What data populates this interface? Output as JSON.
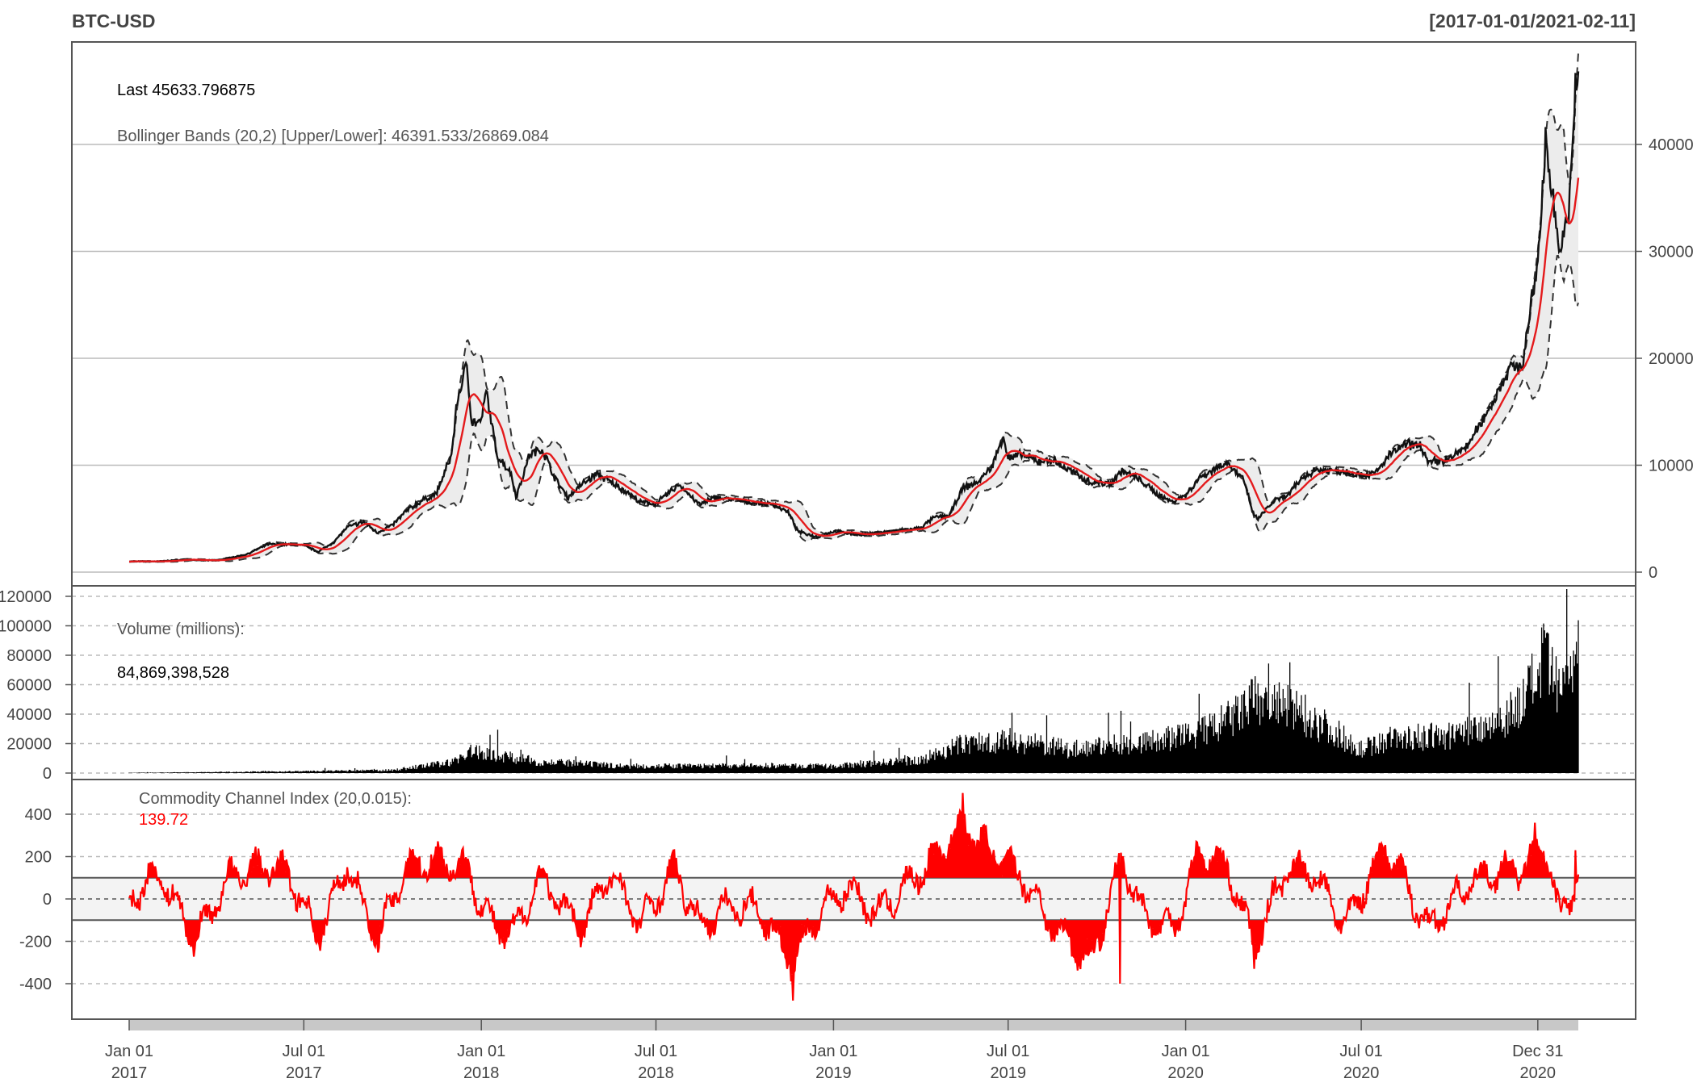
{
  "header": {
    "symbol": "BTC-USD",
    "range": "[2017-01-01/2021-02-11]"
  },
  "colors": {
    "background": "#ffffff",
    "frame": "#555555",
    "grid": "#bbbbbb",
    "price_line": "#111111",
    "sma_line": "#e41a1c",
    "band_line": "#333333",
    "band_fill": "#e8e8e8",
    "volume": "#000000",
    "cci": "#ff0000",
    "cci_band": "#f2f2f2",
    "text": "#444444",
    "cci_value": "#ff0000"
  },
  "chart_data": [
    {
      "type": "line",
      "title": "BTC-USD",
      "subtitle": "[2017-01-01/2021-02-11]",
      "last_label": "Last 45633.796875",
      "bands_label": "Bollinger Bands (20,2) [Upper/Lower]: 46391.533/26869.084",
      "ylim": [
        0,
        49000
      ],
      "yticks": [
        0,
        10000,
        20000,
        30000,
        40000
      ],
      "ytick_labels": [
        "0",
        "10000",
        "20000",
        "30000",
        "40000"
      ],
      "grid": true,
      "series": [
        {
          "x": [
            "2017-01-01",
            "2017-02-01",
            "2017-03-01",
            "2017-03-15",
            "2017-04-01",
            "2017-05-01",
            "2017-05-25",
            "2017-06-12",
            "2017-07-01",
            "2017-07-16",
            "2017-08-01",
            "2017-08-15",
            "2017-09-01",
            "2017-09-15",
            "2017-10-01",
            "2017-10-15",
            "2017-11-01",
            "2017-11-15",
            "2017-12-01",
            "2017-12-07",
            "2017-12-17",
            "2017-12-22",
            "2018-01-01",
            "2018-01-06",
            "2018-01-17",
            "2018-02-01",
            "2018-02-06",
            "2018-02-20",
            "2018-03-05",
            "2018-03-20",
            "2018-04-01",
            "2018-04-15",
            "2018-05-01",
            "2018-05-15",
            "2018-06-01",
            "2018-06-15",
            "2018-07-01",
            "2018-07-25",
            "2018-08-15",
            "2018-09-01",
            "2018-10-01",
            "2018-11-01",
            "2018-11-15",
            "2018-11-25",
            "2018-12-15",
            "2019-01-01",
            "2019-02-01",
            "2019-03-01",
            "2019-04-01",
            "2019-04-15",
            "2019-05-01",
            "2019-05-15",
            "2019-06-01",
            "2019-06-15",
            "2019-06-26",
            "2019-07-01",
            "2019-07-15",
            "2019-08-01",
            "2019-08-15",
            "2019-09-01",
            "2019-09-25",
            "2019-10-15",
            "2019-10-27",
            "2019-11-15",
            "2019-12-01",
            "2019-12-17",
            "2020-01-01",
            "2020-01-15",
            "2020-02-12",
            "2020-03-01",
            "2020-03-12",
            "2020-03-16",
            "2020-04-01",
            "2020-04-15",
            "2020-05-01",
            "2020-05-15",
            "2020-06-01",
            "2020-06-15",
            "2020-07-01",
            "2020-07-15",
            "2020-08-01",
            "2020-08-15",
            "2020-09-01",
            "2020-09-08",
            "2020-10-01",
            "2020-10-20",
            "2020-11-01",
            "2020-11-15",
            "2020-12-01",
            "2020-12-15",
            "2020-12-31",
            "2021-01-08",
            "2021-01-15",
            "2021-01-22",
            "2021-02-01",
            "2021-02-08",
            "2021-02-11"
          ],
          "y": [
            1000,
            1000,
            1200,
            1100,
            1100,
            1600,
            2600,
            2600,
            2500,
            1900,
            2800,
            4200,
            4700,
            3700,
            4400,
            5700,
            6700,
            7300,
            10900,
            16000,
            19500,
            14000,
            14000,
            17000,
            11000,
            9200,
            7000,
            11000,
            11500,
            8500,
            7000,
            8200,
            9200,
            8400,
            7500,
            6500,
            6400,
            8200,
            6300,
            7000,
            6600,
            6300,
            5600,
            3800,
            3300,
            3800,
            3500,
            3800,
            4100,
            5100,
            5300,
            7800,
            8500,
            10000,
            12800,
            10600,
            11000,
            10300,
            10500,
            9600,
            8400,
            8300,
            9500,
            8600,
            7400,
            6600,
            7200,
            8800,
            10300,
            8600,
            5200,
            5000,
            6600,
            7100,
            8800,
            9600,
            9500,
            9400,
            9100,
            9200,
            11100,
            11900,
            11900,
            10200,
            10600,
            11900,
            13800,
            16000,
            19000,
            19400,
            29000,
            40000,
            36000,
            30000,
            33000,
            46000,
            45634
          ]
        }
      ]
    },
    {
      "type": "bar",
      "title": "Volume (millions):",
      "last_value": "84,869,398,528",
      "ylim": [
        0,
        125000
      ],
      "yticks": [
        0,
        20000,
        40000,
        60000,
        80000,
        100000,
        120000
      ],
      "ytick_labels": [
        "0",
        "20000",
        "40000",
        "60000",
        "80000",
        "100000",
        "120000"
      ],
      "series": [
        {
          "x": [
            "2017-01-01",
            "2017-06-01",
            "2017-10-01",
            "2017-12-01",
            "2017-12-20",
            "2018-01-15",
            "2018-03-01",
            "2018-06-01",
            "2018-11-01",
            "2019-01-01",
            "2019-04-01",
            "2019-05-15",
            "2019-07-01",
            "2019-09-01",
            "2019-12-01",
            "2020-01-15",
            "2020-02-15",
            "2020-03-15",
            "2020-05-01",
            "2020-06-01",
            "2020-07-01",
            "2020-08-01",
            "2020-10-01",
            "2020-11-15",
            "2020-12-15",
            "2021-01-07",
            "2021-01-20",
            "2021-02-11"
          ],
          "y": [
            200,
            1100,
            2200,
            8000,
            16000,
            14000,
            8500,
            5200,
            5500,
            5000,
            10000,
            22000,
            25000,
            18000,
            24000,
            30000,
            40000,
            55000,
            45000,
            32000,
            18000,
            26000,
            28000,
            38000,
            52000,
            85000,
            62000,
            84869
          ]
        }
      ]
    },
    {
      "type": "line",
      "title": "Commodity Channel Index (20,0.015):",
      "last_value": "139.72",
      "ylim": [
        -520,
        520
      ],
      "yticks": [
        -400,
        -200,
        0,
        200,
        400
      ],
      "ytick_labels": [
        "-400",
        "-200",
        "0",
        "200",
        "400"
      ],
      "band": [
        -100,
        100
      ],
      "series": [
        {
          "x": [
            "2017-01-01",
            "2017-02-01",
            "2017-03-10",
            "2017-04-15",
            "2017-05-20",
            "2017-06-15",
            "2017-07-16",
            "2017-08-15",
            "2017-09-15",
            "2017-10-15",
            "2017-11-15",
            "2017-12-15",
            "2018-01-15",
            "2018-02-06",
            "2018-03-01",
            "2018-04-15",
            "2018-05-15",
            "2018-06-15",
            "2018-07-20",
            "2018-08-15",
            "2018-09-15",
            "2018-10-15",
            "2018-11-20",
            "2018-12-15",
            "2019-01-15",
            "2019-02-15",
            "2019-04-05",
            "2019-05-15",
            "2019-06-20",
            "2019-07-15",
            "2019-08-15",
            "2019-09-25",
            "2019-10-27",
            "2019-11-20",
            "2019-12-20",
            "2020-01-15",
            "2020-02-15",
            "2020-03-12",
            "2020-04-15",
            "2020-05-10",
            "2020-06-15",
            "2020-07-25",
            "2020-08-15",
            "2020-09-08",
            "2020-10-20",
            "2020-11-15",
            "2020-12-15",
            "2021-01-08",
            "2021-01-22",
            "2021-02-11"
          ],
          "y": [
            0,
            180,
            -280,
            150,
            220,
            180,
            -260,
            240,
            -290,
            230,
            260,
            220,
            -210,
            -220,
            150,
            -200,
            180,
            -170,
            210,
            -180,
            -50,
            -60,
            -440,
            -100,
            80,
            -100,
            200,
            500,
            280,
            160,
            -180,
            -420,
            260,
            -120,
            -200,
            320,
            200,
            -330,
            220,
            180,
            -180,
            360,
            120,
            -200,
            100,
            180,
            200,
            350,
            -130,
            140
          ]
        }
      ]
    }
  ],
  "x_axis": {
    "ticks": [
      {
        "date": "2017-01-01",
        "line1": "Jan 01",
        "line2": "2017"
      },
      {
        "date": "2017-07-01",
        "line1": "Jul 01",
        "line2": "2017"
      },
      {
        "date": "2018-01-01",
        "line1": "Jan 01",
        "line2": "2018"
      },
      {
        "date": "2018-07-01",
        "line1": "Jul 01",
        "line2": "2018"
      },
      {
        "date": "2019-01-01",
        "line1": "Jan 01",
        "line2": "2019"
      },
      {
        "date": "2019-07-01",
        "line1": "Jul 01",
        "line2": "2019"
      },
      {
        "date": "2020-01-01",
        "line1": "Jan 01",
        "line2": "2020"
      },
      {
        "date": "2020-07-01",
        "line1": "Jul 01",
        "line2": "2020"
      },
      {
        "date": "2020-12-31",
        "line1": "Dec 31",
        "line2": "2020"
      }
    ]
  }
}
